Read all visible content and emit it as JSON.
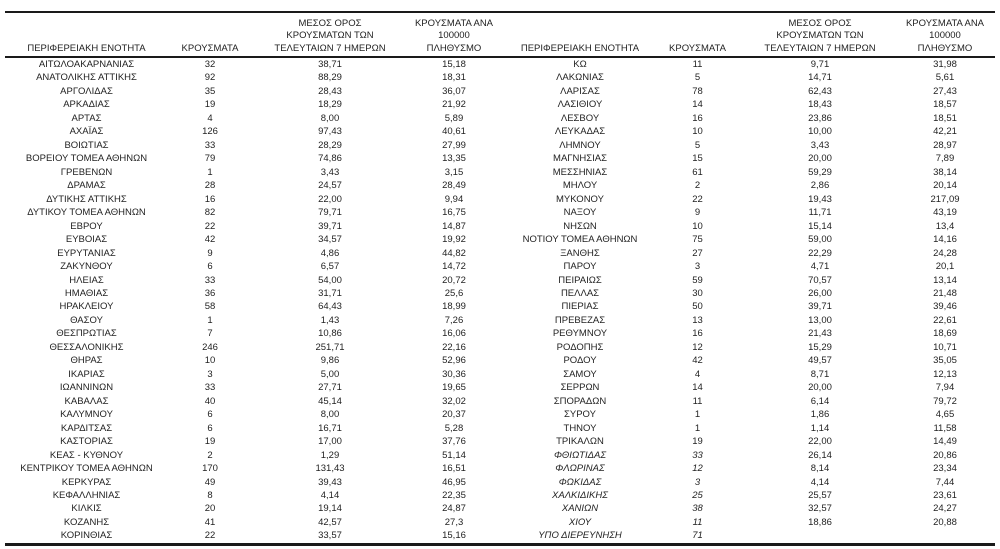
{
  "table": {
    "headers": {
      "region": "ΠΕΡΙΦΕΡΕΙΑΚΗ ΕΝΟΤΗΤΑ",
      "cases": "ΚΡΟΥΣΜΑΤΑ",
      "avg7": "ΜΕΣΟΣ ΟΡΟΣ\nΚΡΟΥΣΜΑΤΩΝ ΤΩΝ\nΤΕΛΕΥΤΑΙΩΝ 7 ΗΜΕΡΩΝ",
      "per100k": "ΚΡΟΥΣΜΑΤΑ ΑΝΑ 100000\nΠΛΗΘΥΣΜΟ"
    },
    "left_rows": [
      {
        "region": "ΑΙΤΩΛΟΑΚΑΡΝΑΝΙΑΣ",
        "cases": "32",
        "avg7": "38,71",
        "per100k": "15,18"
      },
      {
        "region": "ΑΝΑΤΟΛΙΚΗΣ ΑΤΤΙΚΗΣ",
        "cases": "92",
        "avg7": "88,29",
        "per100k": "18,31"
      },
      {
        "region": "ΑΡΓΟΛΙΔΑΣ",
        "cases": "35",
        "avg7": "28,43",
        "per100k": "36,07"
      },
      {
        "region": "ΑΡΚΑΔΙΑΣ",
        "cases": "19",
        "avg7": "18,29",
        "per100k": "21,92"
      },
      {
        "region": "ΑΡΤΑΣ",
        "cases": "4",
        "avg7": "8,00",
        "per100k": "5,89"
      },
      {
        "region": "ΑΧΑΪΑΣ",
        "cases": "126",
        "avg7": "97,43",
        "per100k": "40,61"
      },
      {
        "region": "ΒΟΙΩΤΙΑΣ",
        "cases": "33",
        "avg7": "28,29",
        "per100k": "27,99"
      },
      {
        "region": "ΒΟΡΕΙΟΥ ΤΟΜΕΑ ΑΘΗΝΩΝ",
        "cases": "79",
        "avg7": "74,86",
        "per100k": "13,35"
      },
      {
        "region": "ΓΡΕΒΕΝΩΝ",
        "cases": "1",
        "avg7": "3,43",
        "per100k": "3,15"
      },
      {
        "region": "ΔΡΑΜΑΣ",
        "cases": "28",
        "avg7": "24,57",
        "per100k": "28,49"
      },
      {
        "region": "ΔΥΤΙΚΗΣ ΑΤΤΙΚΗΣ",
        "cases": "16",
        "avg7": "22,00",
        "per100k": "9,94"
      },
      {
        "region": "ΔΥΤΙΚΟΥ ΤΟΜΕΑ ΑΘΗΝΩΝ",
        "cases": "82",
        "avg7": "79,71",
        "per100k": "16,75"
      },
      {
        "region": "ΕΒΡΟΥ",
        "cases": "22",
        "avg7": "39,71",
        "per100k": "14,87"
      },
      {
        "region": "ΕΥΒΟΙΑΣ",
        "cases": "42",
        "avg7": "34,57",
        "per100k": "19,92"
      },
      {
        "region": "ΕΥΡΥΤΑΝΙΑΣ",
        "cases": "9",
        "avg7": "4,86",
        "per100k": "44,82"
      },
      {
        "region": "ΖΑΚΥΝΘΟΥ",
        "cases": "6",
        "avg7": "6,57",
        "per100k": "14,72"
      },
      {
        "region": "ΗΛΕΙΑΣ",
        "cases": "33",
        "avg7": "54,00",
        "per100k": "20,72"
      },
      {
        "region": "ΗΜΑΘΙΑΣ",
        "cases": "36",
        "avg7": "31,71",
        "per100k": "25,6"
      },
      {
        "region": "ΗΡΑΚΛΕΙΟΥ",
        "cases": "58",
        "avg7": "64,43",
        "per100k": "18,99"
      },
      {
        "region": "ΘΑΣΟΥ",
        "cases": "1",
        "avg7": "1,43",
        "per100k": "7,26"
      },
      {
        "region": "ΘΕΣΠΡΩΤΙΑΣ",
        "cases": "7",
        "avg7": "10,86",
        "per100k": "16,06"
      },
      {
        "region": "ΘΕΣΣΑΛΟΝΙΚΗΣ",
        "cases": "246",
        "avg7": "251,71",
        "per100k": "22,16"
      },
      {
        "region": "ΘΗΡΑΣ",
        "cases": "10",
        "avg7": "9,86",
        "per100k": "52,96"
      },
      {
        "region": "ΙΚΑΡΙΑΣ",
        "cases": "3",
        "avg7": "5,00",
        "per100k": "30,36"
      },
      {
        "region": "ΙΩΑΝΝΙΝΩΝ",
        "cases": "33",
        "avg7": "27,71",
        "per100k": "19,65"
      },
      {
        "region": "ΚΑΒΑΛΑΣ",
        "cases": "40",
        "avg7": "45,14",
        "per100k": "32,02"
      },
      {
        "region": "ΚΑΛΥΜΝΟΥ",
        "cases": "6",
        "avg7": "8,00",
        "per100k": "20,37"
      },
      {
        "region": "ΚΑΡΔΙΤΣΑΣ",
        "cases": "6",
        "avg7": "16,71",
        "per100k": "5,28"
      },
      {
        "region": "ΚΑΣΤΟΡΙΑΣ",
        "cases": "19",
        "avg7": "17,00",
        "per100k": "37,76"
      },
      {
        "region": "ΚΕΑΣ - ΚΥΘΝΟΥ",
        "cases": "2",
        "avg7": "1,29",
        "per100k": "51,14"
      },
      {
        "region": "ΚΕΝΤΡΙΚΟΥ ΤΟΜΕΑ ΑΘΗΝΩΝ",
        "cases": "170",
        "avg7": "131,43",
        "per100k": "16,51"
      },
      {
        "region": "ΚΕΡΚΥΡΑΣ",
        "cases": "49",
        "avg7": "39,43",
        "per100k": "46,95"
      },
      {
        "region": "ΚΕΦΑΛΛΗΝΙΑΣ",
        "cases": "8",
        "avg7": "4,14",
        "per100k": "22,35"
      },
      {
        "region": "ΚΙΛΚΙΣ",
        "cases": "20",
        "avg7": "19,14",
        "per100k": "24,87"
      },
      {
        "region": "ΚΟΖΑΝΗΣ",
        "cases": "41",
        "avg7": "42,57",
        "per100k": "27,3"
      },
      {
        "region": "ΚΟΡΙΝΘΙΑΣ",
        "cases": "22",
        "avg7": "33,57",
        "per100k": "15,16"
      }
    ],
    "right_rows": [
      {
        "region": "ΚΩ",
        "cases": "11",
        "avg7": "9,71",
        "per100k": "31,98"
      },
      {
        "region": "ΛΑΚΩΝΙΑΣ",
        "cases": "5",
        "avg7": "14,71",
        "per100k": "5,61"
      },
      {
        "region": "ΛΑΡΙΣΑΣ",
        "cases": "78",
        "avg7": "62,43",
        "per100k": "27,43"
      },
      {
        "region": "ΛΑΣΙΘΙΟΥ",
        "cases": "14",
        "avg7": "18,43",
        "per100k": "18,57"
      },
      {
        "region": "ΛΕΣΒΟΥ",
        "cases": "16",
        "avg7": "23,86",
        "per100k": "18,51"
      },
      {
        "region": "ΛΕΥΚΑΔΑΣ",
        "cases": "10",
        "avg7": "10,00",
        "per100k": "42,21"
      },
      {
        "region": "ΛΗΜΝΟΥ",
        "cases": "5",
        "avg7": "3,43",
        "per100k": "28,97"
      },
      {
        "region": "ΜΑΓΝΗΣΙΑΣ",
        "cases": "15",
        "avg7": "20,00",
        "per100k": "7,89"
      },
      {
        "region": "ΜΕΣΣΗΝΙΑΣ",
        "cases": "61",
        "avg7": "59,29",
        "per100k": "38,14"
      },
      {
        "region": "ΜΗΛΟΥ",
        "cases": "2",
        "avg7": "2,86",
        "per100k": "20,14"
      },
      {
        "region": "ΜΥΚΟΝΟΥ",
        "cases": "22",
        "avg7": "19,43",
        "per100k": "217,09"
      },
      {
        "region": "ΝΑΞΟΥ",
        "cases": "9",
        "avg7": "11,71",
        "per100k": "43,19"
      },
      {
        "region": "ΝΗΣΩΝ",
        "cases": "10",
        "avg7": "15,14",
        "per100k": "13,4"
      },
      {
        "region": "ΝΟΤΙΟΥ ΤΟΜΕΑ ΑΘΗΝΩΝ",
        "cases": "75",
        "avg7": "59,00",
        "per100k": "14,16"
      },
      {
        "region": "ΞΑΝΘΗΣ",
        "cases": "27",
        "avg7": "22,29",
        "per100k": "24,28"
      },
      {
        "region": "ΠΑΡΟΥ",
        "cases": "3",
        "avg7": "4,71",
        "per100k": "20,1"
      },
      {
        "region": "ΠΕΙΡΑΙΩΣ",
        "cases": "59",
        "avg7": "70,57",
        "per100k": "13,14"
      },
      {
        "region": "ΠΕΛΛΑΣ",
        "cases": "30",
        "avg7": "26,00",
        "per100k": "21,48"
      },
      {
        "region": "ΠΙΕΡΙΑΣ",
        "cases": "50",
        "avg7": "39,71",
        "per100k": "39,46"
      },
      {
        "region": "ΠΡΕΒΕΖΑΣ",
        "cases": "13",
        "avg7": "13,00",
        "per100k": "22,61"
      },
      {
        "region": "ΡΕΘΥΜΝΟΥ",
        "cases": "16",
        "avg7": "21,43",
        "per100k": "18,69"
      },
      {
        "region": "ΡΟΔΟΠΗΣ",
        "cases": "12",
        "avg7": "15,29",
        "per100k": "10,71"
      },
      {
        "region": "ΡΟΔΟΥ",
        "cases": "42",
        "avg7": "49,57",
        "per100k": "35,05"
      },
      {
        "region": "ΣΑΜΟΥ",
        "cases": "4",
        "avg7": "8,71",
        "per100k": "12,13"
      },
      {
        "region": "ΣΕΡΡΩΝ",
        "cases": "14",
        "avg7": "20,00",
        "per100k": "7,94"
      },
      {
        "region": "ΣΠΟΡΑΔΩΝ",
        "cases": "11",
        "avg7": "6,14",
        "per100k": "79,72"
      },
      {
        "region": "ΣΥΡΟΥ",
        "cases": "1",
        "avg7": "1,86",
        "per100k": "4,65"
      },
      {
        "region": "ΤΗΝΟΥ",
        "cases": "1",
        "avg7": "1,14",
        "per100k": "11,58"
      },
      {
        "region": "ΤΡΙΚΑΛΩΝ",
        "cases": "19",
        "avg7": "22,00",
        "per100k": "14,49"
      },
      {
        "region": "ΦΘΙΩΤΙΔΑΣ",
        "cases": "33",
        "avg7": "26,14",
        "per100k": "20,86",
        "italic": true
      },
      {
        "region": "ΦΛΩΡΙΝΑΣ",
        "cases": "12",
        "avg7": "8,14",
        "per100k": "23,34",
        "italic": true
      },
      {
        "region": "ΦΩΚΙΔΑΣ",
        "cases": "3",
        "avg7": "4,14",
        "per100k": "7,44",
        "italic": true
      },
      {
        "region": "ΧΑΛΚΙΔΙΚΗΣ",
        "cases": "25",
        "avg7": "25,57",
        "per100k": "23,61",
        "italic": true
      },
      {
        "region": "ΧΑΝΙΩΝ",
        "cases": "38",
        "avg7": "32,57",
        "per100k": "24,27",
        "italic": true
      },
      {
        "region": "ΧΙΟΥ",
        "cases": "11",
        "avg7": "18,86",
        "per100k": "20,88",
        "italic": true
      },
      {
        "region": "ΥΠΟ ΔΙΕΡΕΥΝΗΣΗ",
        "cases": "71",
        "avg7": "",
        "per100k": "",
        "italic": true
      }
    ]
  }
}
